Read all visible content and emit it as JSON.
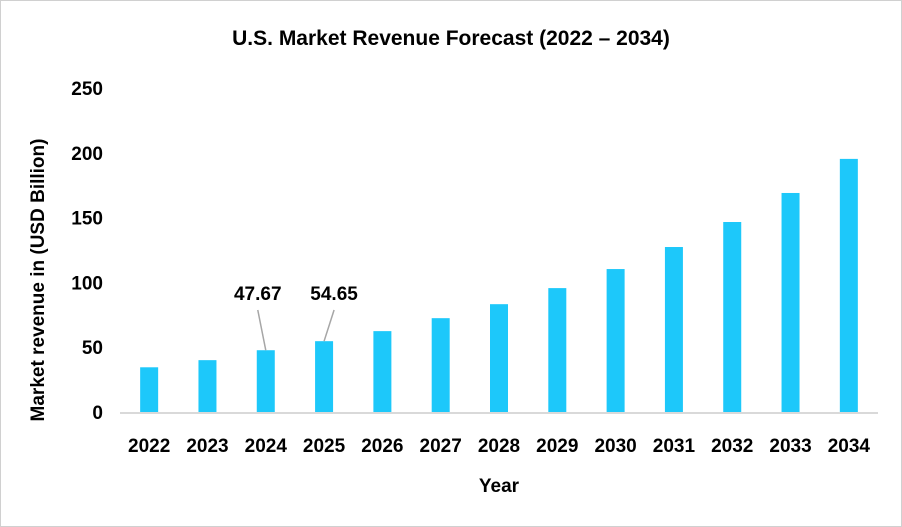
{
  "chart_data": {
    "type": "bar",
    "title": "U.S. Market Revenue Forecast (2022 – 2034)",
    "xlabel": "Year",
    "ylabel": "Market revenue in (USD Billion)",
    "ylim": [
      0,
      250
    ],
    "yticks": [
      "0",
      "50",
      "100",
      "150",
      "200",
      "250"
    ],
    "grid": false,
    "categories": [
      "2022",
      "2023",
      "2024",
      "2025",
      "2026",
      "2027",
      "2028",
      "2029",
      "2030",
      "2031",
      "2032",
      "2033",
      "2034"
    ],
    "values": [
      34.5,
      40.0,
      47.67,
      54.65,
      62.4,
      72.4,
      83.2,
      95.6,
      110.3,
      127.3,
      146.6,
      169.0,
      195.3
    ],
    "data_labels": [
      {
        "category": "2024",
        "text": "47.67"
      },
      {
        "category": "2025",
        "text": "54.65"
      }
    ],
    "bar_color": "#1DC8FA",
    "axis_color": "#d9d9d9"
  }
}
